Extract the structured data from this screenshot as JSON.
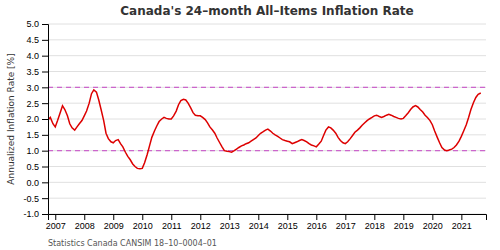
{
  "chart_data": {
    "type": "line",
    "title": "Canada's 24–month All–Items Inflation Rate",
    "ylabel": "Annualized Inflation Rate [%]",
    "annotation": "Statistics Canada CANSIM 18–10–0004–01",
    "color": "#dd0000",
    "grid": true,
    "xlim": [
      2006.75,
      2021.85
    ],
    "xticks": [
      2007,
      2008,
      2009,
      2010,
      2011,
      2012,
      2013,
      2014,
      2015,
      2016,
      2017,
      2018,
      2019,
      2020,
      2021
    ],
    "ylim": [
      -1.0,
      5.0
    ],
    "yticks": [
      {
        "value": -1.0,
        "label": "-1.0"
      },
      -0.5,
      {
        "value": 0.0,
        "label": "0.0"
      },
      0.5,
      {
        "value": 1.0,
        "label": "1.0"
      },
      1.5,
      {
        "value": 2.0,
        "label": "2.0"
      },
      2.5,
      {
        "value": 3.0,
        "label": "3.0"
      },
      3.5,
      {
        "value": 4.0,
        "label": "4.0"
      },
      4.5,
      {
        "value": 5.0,
        "label": "5.0"
      }
    ],
    "hlines": [
      {
        "value": 3.0,
        "color": "#cc66cc",
        "line_style": "dashed"
      },
      {
        "value": 1.0,
        "color": "#cc66cc",
        "line_style": "dashed"
      }
    ],
    "x": [
      2006.75,
      2006.83,
      2006.92,
      2007.0,
      2007.08,
      2007.17,
      2007.25,
      2007.33,
      2007.42,
      2007.5,
      2007.58,
      2007.67,
      2007.75,
      2007.83,
      2007.92,
      2008.0,
      2008.08,
      2008.17,
      2008.25,
      2008.33,
      2008.42,
      2008.5,
      2008.58,
      2008.67,
      2008.75,
      2008.83,
      2008.92,
      2009.0,
      2009.08,
      2009.17,
      2009.25,
      2009.33,
      2009.42,
      2009.5,
      2009.58,
      2009.67,
      2009.75,
      2009.83,
      2009.92,
      2010.0,
      2010.08,
      2010.17,
      2010.25,
      2010.33,
      2010.42,
      2010.5,
      2010.58,
      2010.67,
      2010.75,
      2010.83,
      2010.92,
      2011.0,
      2011.08,
      2011.17,
      2011.25,
      2011.33,
      2011.42,
      2011.5,
      2011.58,
      2011.67,
      2011.75,
      2011.83,
      2011.92,
      2012.0,
      2012.08,
      2012.17,
      2012.25,
      2012.33,
      2012.42,
      2012.5,
      2012.58,
      2012.67,
      2012.75,
      2012.83,
      2012.92,
      2013.0,
      2013.08,
      2013.17,
      2013.25,
      2013.33,
      2013.42,
      2013.5,
      2013.58,
      2013.67,
      2013.75,
      2013.83,
      2013.92,
      2014.0,
      2014.08,
      2014.17,
      2014.25,
      2014.33,
      2014.42,
      2014.5,
      2014.58,
      2014.67,
      2014.75,
      2014.83,
      2014.92,
      2015.0,
      2015.08,
      2015.17,
      2015.25,
      2015.33,
      2015.42,
      2015.5,
      2015.58,
      2015.67,
      2015.75,
      2015.83,
      2015.92,
      2016.0,
      2016.08,
      2016.17,
      2016.25,
      2016.33,
      2016.42,
      2016.5,
      2016.58,
      2016.67,
      2016.75,
      2016.83,
      2016.92,
      2017.0,
      2017.08,
      2017.17,
      2017.25,
      2017.33,
      2017.42,
      2017.5,
      2017.58,
      2017.67,
      2017.75,
      2017.83,
      2017.92,
      2018.0,
      2018.08,
      2018.17,
      2018.25,
      2018.33,
      2018.42,
      2018.5,
      2018.58,
      2018.67,
      2018.75,
      2018.83,
      2018.92,
      2019.0,
      2019.08,
      2019.17,
      2019.25,
      2019.33,
      2019.42,
      2019.5,
      2019.58,
      2019.67,
      2019.75,
      2019.83,
      2019.92,
      2020.0,
      2020.08,
      2020.17,
      2020.25,
      2020.33,
      2020.42,
      2020.5,
      2020.58,
      2020.67,
      2020.75,
      2020.83,
      2020.92,
      2021.0,
      2021.08,
      2021.17,
      2021.25,
      2021.33,
      2021.42,
      2021.5,
      2021.58,
      2021.67
    ],
    "values": [
      1.97,
      2.05,
      1.85,
      1.75,
      1.95,
      2.2,
      2.42,
      2.3,
      2.1,
      1.85,
      1.72,
      1.65,
      1.75,
      1.85,
      1.95,
      2.1,
      2.25,
      2.5,
      2.8,
      2.92,
      2.85,
      2.6,
      2.3,
      1.95,
      1.55,
      1.38,
      1.28,
      1.25,
      1.32,
      1.35,
      1.22,
      1.12,
      0.95,
      0.82,
      0.72,
      0.58,
      0.5,
      0.44,
      0.43,
      0.44,
      0.62,
      0.88,
      1.15,
      1.42,
      1.62,
      1.78,
      1.92,
      2.0,
      2.05,
      2.02,
      2.0,
      2.0,
      2.1,
      2.25,
      2.45,
      2.58,
      2.62,
      2.6,
      2.5,
      2.35,
      2.2,
      2.12,
      2.1,
      2.1,
      2.05,
      1.98,
      1.88,
      1.75,
      1.65,
      1.55,
      1.4,
      1.25,
      1.12,
      1.0,
      0.98,
      0.97,
      0.95,
      1.0,
      1.05,
      1.1,
      1.15,
      1.18,
      1.22,
      1.25,
      1.3,
      1.35,
      1.4,
      1.48,
      1.55,
      1.6,
      1.65,
      1.68,
      1.62,
      1.55,
      1.5,
      1.45,
      1.4,
      1.35,
      1.32,
      1.3,
      1.28,
      1.22,
      1.25,
      1.28,
      1.32,
      1.35,
      1.32,
      1.28,
      1.22,
      1.18,
      1.15,
      1.12,
      1.2,
      1.3,
      1.48,
      1.65,
      1.75,
      1.72,
      1.65,
      1.55,
      1.42,
      1.32,
      1.25,
      1.22,
      1.28,
      1.38,
      1.48,
      1.58,
      1.65,
      1.72,
      1.8,
      1.88,
      1.95,
      2.0,
      2.05,
      2.1,
      2.12,
      2.08,
      2.05,
      2.08,
      2.12,
      2.15,
      2.12,
      2.08,
      2.05,
      2.02,
      2.0,
      2.02,
      2.1,
      2.2,
      2.3,
      2.38,
      2.42,
      2.38,
      2.3,
      2.22,
      2.12,
      2.05,
      1.95,
      1.82,
      1.62,
      1.42,
      1.25,
      1.1,
      1.02,
      1.0,
      1.02,
      1.05,
      1.1,
      1.18,
      1.3,
      1.45,
      1.62,
      1.82,
      2.05,
      2.3,
      2.52,
      2.68,
      2.78,
      2.82
    ]
  }
}
